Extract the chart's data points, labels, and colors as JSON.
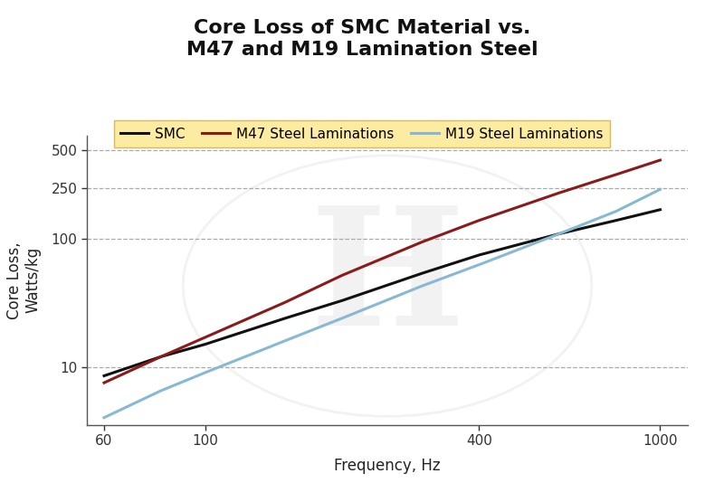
{
  "title": "Core Loss of SMC Material vs.\nM47 and M19 Lamination Steel",
  "xlabel": "Frequency, Hz",
  "ylabel": "Core Loss,\nWatts/kg",
  "background_color": "#ffffff",
  "legend_bg_color": "#fce88a",
  "legend_edge_color": "#d4a843",
  "x_ticks": [
    60,
    100,
    400,
    1000
  ],
  "y_ticks": [
    10,
    100,
    250,
    500
  ],
  "xlim": [
    55,
    1150
  ],
  "ylim": [
    3.5,
    650
  ],
  "series": [
    {
      "label": "SMC",
      "color": "#111111",
      "linewidth": 2.2,
      "x": [
        60,
        80,
        100,
        150,
        200,
        300,
        400,
        600,
        800,
        1000
      ],
      "y": [
        8.5,
        12,
        15,
        24,
        33,
        54,
        75,
        110,
        140,
        170
      ]
    },
    {
      "label": "M47 Steel Laminations",
      "color": "#8b1a1a",
      "linewidth": 2.2,
      "x": [
        60,
        80,
        100,
        150,
        200,
        300,
        400,
        600,
        800,
        1000
      ],
      "y": [
        7.5,
        12,
        17,
        32,
        52,
        95,
        140,
        230,
        320,
        415
      ]
    },
    {
      "label": "M19 Steel Laminations",
      "color": "#87b9d4",
      "linewidth": 2.2,
      "x": [
        60,
        80,
        100,
        150,
        200,
        300,
        400,
        600,
        800,
        1000
      ],
      "y": [
        4.0,
        6.5,
        9,
        16,
        24,
        43,
        63,
        110,
        165,
        245
      ]
    }
  ],
  "title_fontsize": 16,
  "axis_label_fontsize": 12,
  "tick_label_fontsize": 11,
  "legend_fontsize": 11,
  "watermark_color": "#cccccc",
  "watermark_alpha": 0.25
}
